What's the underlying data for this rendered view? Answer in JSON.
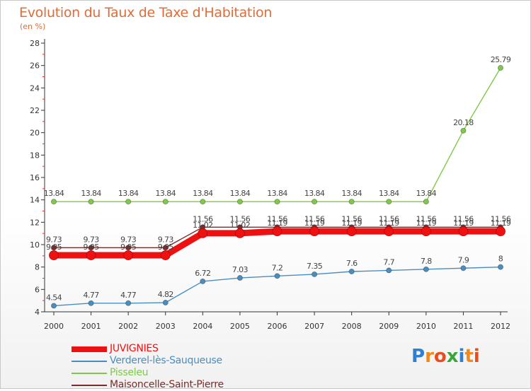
{
  "title": "Evolution du Taux de Taxe d'Habitation",
  "unit_label": "(en %)",
  "brand": {
    "letters": [
      "P",
      "r",
      "o",
      "x",
      "i",
      "t",
      "i"
    ],
    "colors": [
      "#2f7fd3",
      "#f08a1c",
      "#e84e1b",
      "#3aa63a",
      "#2f7fd3",
      "#f08a1c",
      "#e84e1b"
    ]
  },
  "chart_data": {
    "type": "line",
    "x": [
      "2000",
      "2001",
      "2002",
      "2003",
      "2004",
      "2005",
      "2006",
      "2007",
      "2008",
      "2009",
      "2010",
      "2011",
      "2012"
    ],
    "ylim": [
      4,
      28
    ],
    "yticks": [
      "4",
      "6",
      "8",
      "10",
      "12",
      "14",
      "16",
      "18",
      "20",
      "22",
      "24",
      "26",
      "28"
    ],
    "grid": false,
    "legend_position": "bottom-left",
    "series": [
      {
        "name": "JUVIGNIES",
        "color": "#ee1111",
        "values": [
          9.05,
          9.05,
          9.05,
          9.05,
          11.02,
          11.02,
          11.19,
          11.19,
          11.19,
          11.19,
          11.19,
          11.19,
          11.19
        ],
        "labels": [
          "9.05",
          "9.05",
          "9.05",
          "9.05",
          "11.02",
          "11.02",
          "11.19",
          "11.19",
          "11.19",
          "11.19",
          "11.19",
          "11.19",
          "11.19"
        ]
      },
      {
        "name": "Verderel-lès-Sauqueuse",
        "color": "#4a8ec0",
        "values": [
          4.54,
          4.77,
          4.77,
          4.82,
          6.72,
          7.03,
          7.2,
          7.35,
          7.6,
          7.7,
          7.8,
          7.9,
          8
        ],
        "labels": [
          "4.54",
          "4.77",
          "4.77",
          "4.82",
          "6.72",
          "7.03",
          "7.2",
          "7.35",
          "7.6",
          "7.7",
          "7.8",
          "7.9",
          "8"
        ]
      },
      {
        "name": "Pisseleu",
        "color": "#7fc84a",
        "values": [
          13.84,
          13.84,
          13.84,
          13.84,
          13.84,
          13.84,
          13.84,
          13.84,
          13.84,
          13.84,
          13.84,
          20.18,
          25.79
        ],
        "labels": [
          "13.84",
          "13.84",
          "13.84",
          "13.84",
          "13.84",
          "13.84",
          "13.84",
          "13.84",
          "13.84",
          "13.84",
          "13.84",
          "20.18",
          "25.79"
        ]
      },
      {
        "name": "Maisoncelle-Saint-Pierre",
        "color": "#7a2c2c",
        "values": [
          9.73,
          9.73,
          9.73,
          9.73,
          11.56,
          11.56,
          11.56,
          11.56,
          11.56,
          11.56,
          11.56,
          11.56,
          11.56
        ],
        "labels": [
          "9.73",
          "9.73",
          "9.73",
          "9.73",
          "11.56",
          "11.56",
          "11.56",
          "11.56",
          "11.56",
          "11.56",
          "11.56",
          "11.56",
          "11.56"
        ]
      }
    ]
  }
}
